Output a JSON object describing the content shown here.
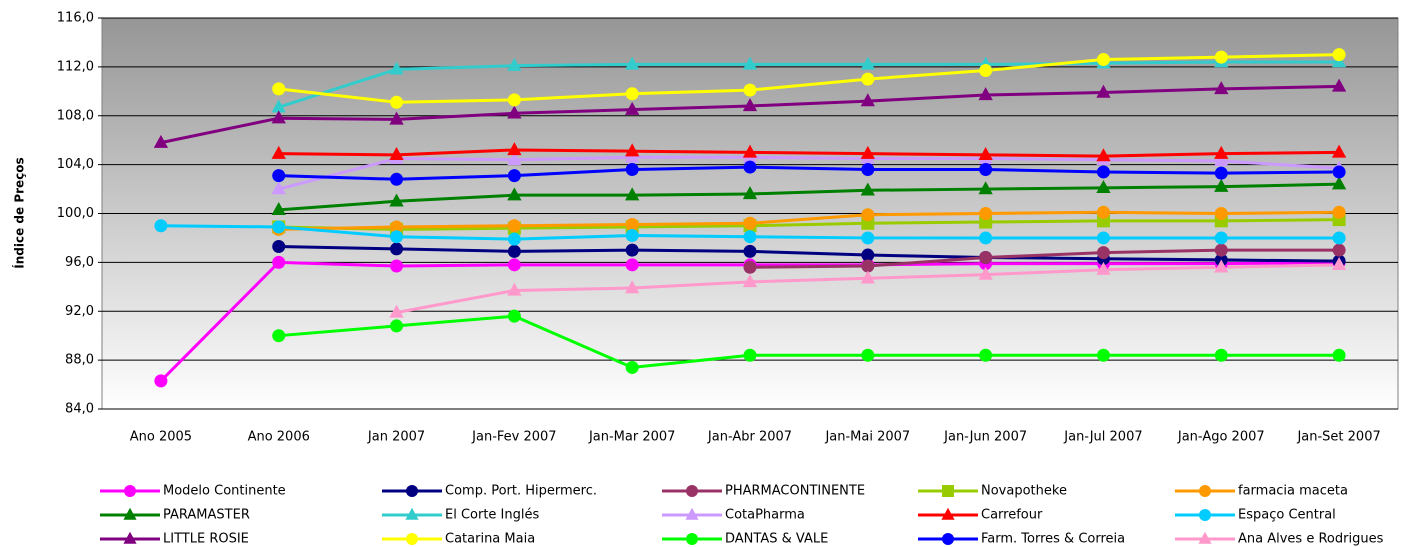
{
  "chart_data": {
    "type": "line",
    "y_label": "Índice de Preços",
    "categories": [
      "Ano 2005",
      "Ano 2006",
      "Jan 2007",
      "Jan-Fev 2007",
      "Jan-Mar 2007",
      "Jan-Abr 2007",
      "Jan-Mai 2007",
      "Jan-Jun 2007",
      "Jan-Jul 2007",
      "Jan-Ago 2007",
      "Jan-Set 2007"
    ],
    "ylim": [
      84,
      116
    ],
    "yticks": [
      {
        "value": 84,
        "label": "84,0"
      },
      {
        "value": 88,
        "label": "88,0"
      },
      {
        "value": 92,
        "label": "92,0"
      },
      {
        "value": 96,
        "label": "96,0"
      },
      {
        "value": 100,
        "label": "100,0"
      },
      {
        "value": 104,
        "label": "104,0"
      },
      {
        "value": 108,
        "label": "108,0"
      },
      {
        "value": 112,
        "label": "112,0"
      },
      {
        "value": 116,
        "label": "116,0"
      }
    ],
    "grid": true,
    "legend": "bottom",
    "series": [
      {
        "name": "Modelo Continente",
        "color": "#ff00ff",
        "marker": "circle",
        "values": [
          86.3,
          96.0,
          95.7,
          95.8,
          95.8,
          95.8,
          95.8,
          95.9,
          95.9,
          95.9,
          96.0
        ]
      },
      {
        "name": "Comp. Port. Hipermerc.",
        "color": "#000080",
        "marker": "circle",
        "values": [
          null,
          97.3,
          97.1,
          96.9,
          97.0,
          96.9,
          96.6,
          96.4,
          96.3,
          96.2,
          96.1
        ]
      },
      {
        "name": "PHARMACONTINENTE",
        "color": "#993366",
        "marker": "circle",
        "values": [
          null,
          null,
          null,
          null,
          null,
          95.6,
          95.7,
          96.4,
          96.8,
          97.0,
          97.0
        ]
      },
      {
        "name": "Novapotheke",
        "color": "#99cc00",
        "marker": "square",
        "values": [
          null,
          98.9,
          98.7,
          98.8,
          98.9,
          99.0,
          99.2,
          99.3,
          99.4,
          99.4,
          99.5
        ]
      },
      {
        "name": "farmacia maceta",
        "color": "#ff9900",
        "marker": "circle",
        "values": [
          null,
          98.7,
          98.9,
          99.0,
          99.1,
          99.2,
          99.9,
          100.0,
          100.1,
          100.0,
          100.1
        ]
      },
      {
        "name": "PARAMASTER",
        "color": "#008000",
        "marker": "triangle",
        "values": [
          null,
          100.3,
          101.0,
          101.5,
          101.5,
          101.6,
          101.9,
          102.0,
          102.1,
          102.2,
          102.4
        ]
      },
      {
        "name": "El Corte Inglés",
        "color": "#33cccc",
        "marker": "triangle",
        "values": [
          null,
          108.7,
          111.8,
          112.1,
          112.2,
          112.2,
          112.2,
          112.2,
          112.3,
          112.4,
          112.4
        ]
      },
      {
        "name": "CotaPharma",
        "color": "#cc99ff",
        "marker": "triangle",
        "values": [
          null,
          102.0,
          104.5,
          104.4,
          104.6,
          104.6,
          104.5,
          104.5,
          104.4,
          104.3,
          103.7
        ]
      },
      {
        "name": "Carrefour",
        "color": "#ff0000",
        "marker": "triangle",
        "values": [
          null,
          104.9,
          104.8,
          105.2,
          105.1,
          105.0,
          104.9,
          104.8,
          104.7,
          104.9,
          105.0
        ]
      },
      {
        "name": "Espaço Central",
        "color": "#00ccff",
        "marker": "circle",
        "values": [
          99.0,
          98.9,
          98.1,
          97.9,
          98.2,
          98.1,
          98.0,
          98.0,
          98.0,
          98.0,
          98.0
        ]
      },
      {
        "name": "LITTLE ROSIE",
        "color": "#800080",
        "marker": "triangle",
        "values": [
          105.8,
          107.8,
          107.7,
          108.2,
          108.5,
          108.8,
          109.2,
          109.7,
          109.9,
          110.2,
          110.4
        ]
      },
      {
        "name": "Catarina Maia",
        "color": "#ffff00",
        "marker": "circle",
        "values": [
          null,
          110.2,
          109.1,
          109.3,
          109.8,
          110.1,
          111.0,
          111.7,
          112.6,
          112.8,
          113.0
        ]
      },
      {
        "name": "DANTAS & VALE",
        "color": "#00ff00",
        "marker": "circle",
        "values": [
          null,
          90.0,
          90.8,
          91.6,
          87.4,
          88.4,
          88.4,
          88.4,
          88.4,
          88.4,
          88.4
        ]
      },
      {
        "name": "Farm. Torres & Correia",
        "color": "#0000ff",
        "marker": "circle",
        "values": [
          null,
          103.1,
          102.8,
          103.1,
          103.6,
          103.8,
          103.6,
          103.6,
          103.4,
          103.3,
          103.4
        ]
      },
      {
        "name": "Ana Alves e Rodrigues",
        "color": "#ff99cc",
        "marker": "triangle",
        "values": [
          null,
          null,
          91.9,
          93.7,
          93.9,
          94.4,
          94.7,
          95.0,
          95.4,
          95.6,
          95.8
        ]
      }
    ]
  }
}
